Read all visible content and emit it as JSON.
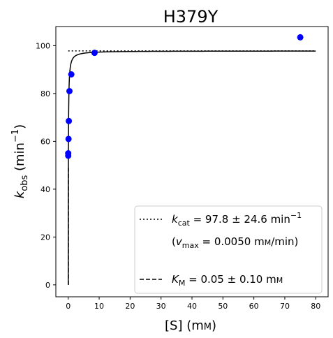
{
  "chart_data": {
    "type": "scatter",
    "title": "H379Y",
    "xlabel": {
      "main": "[S] (m",
      "unit_sc": "M",
      "close": ")"
    },
    "ylabel": {
      "k": "k",
      "sub": "obs",
      "open": " (min",
      "sup": "−1",
      "close": ")"
    },
    "xlim": [
      -4,
      84
    ],
    "ylim": [
      -5,
      108
    ],
    "xticks": [
      0,
      10,
      20,
      30,
      40,
      50,
      60,
      70,
      80
    ],
    "yticks": [
      0,
      20,
      40,
      60,
      80,
      100
    ],
    "grid": false,
    "legend_position": "lower-right",
    "series": [
      {
        "type": "scatter",
        "color": "#0000ff",
        "x": [
          0.0,
          0.0,
          0.1,
          0.2,
          0.4,
          1.0,
          8.5,
          75.0
        ],
        "y": [
          54,
          55,
          61,
          68.5,
          81,
          88,
          97,
          103.5
        ]
      }
    ],
    "fit": {
      "vmax": 97.8,
      "km": 0.05,
      "x_min": 0.0,
      "x_max": 80.0
    },
    "kcat_line": {
      "y": 97.8,
      "x_start": 0.0,
      "x_end": 80.0
    },
    "km_line": {
      "x": 0.05,
      "y_max": 48.9
    },
    "legend": {
      "kcat": {
        "k": "k",
        "sub": "cat",
        "text": " = 97.8 ± 24.6 min",
        "sup": "−1"
      },
      "vmax": {
        "open": "(",
        "v": "v",
        "sub": "max",
        "text": " = 0.0050 m",
        "unit_sc": "M",
        "close": "/min)"
      },
      "km": {
        "k": "K",
        "sub": "M",
        "text": " = 0.05 ± 0.10 m",
        "unit_sc": "M"
      }
    }
  }
}
